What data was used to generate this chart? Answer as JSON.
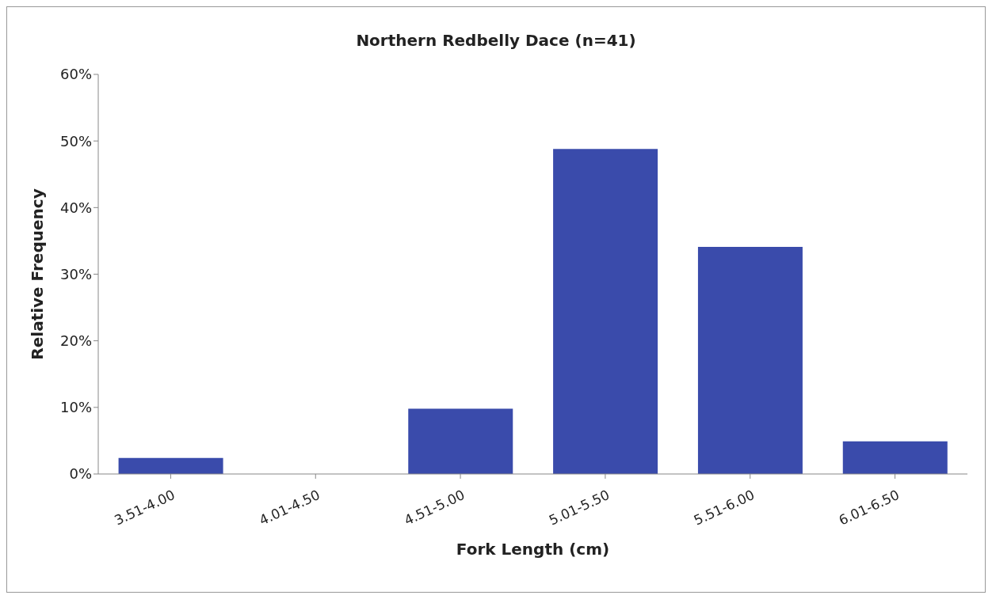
{
  "chart_data": {
    "type": "bar",
    "title": "Northern Redbelly Dace (n=41)",
    "xlabel": "Fork Length (cm)",
    "ylabel": "Relative Frequency",
    "categories": [
      "3.51-4.00",
      "4.01-4.50",
      "4.51-5.00",
      "5.01-5.50",
      "5.51-6.00",
      "6.01-6.50"
    ],
    "values": [
      2.4,
      0,
      9.8,
      48.8,
      34.1,
      4.9
    ],
    "color": "#3a4bab",
    "ylim": [
      0,
      60
    ],
    "yticks": [
      {
        "value": 0,
        "label": "0%"
      },
      {
        "value": 10,
        "label": "10%"
      },
      {
        "value": 20,
        "label": "20%"
      },
      {
        "value": 30,
        "label": "30%"
      },
      {
        "value": 40,
        "label": "40%"
      },
      {
        "value": 50,
        "label": "50%"
      },
      {
        "value": 60,
        "label": "60%"
      }
    ],
    "grid": false
  }
}
